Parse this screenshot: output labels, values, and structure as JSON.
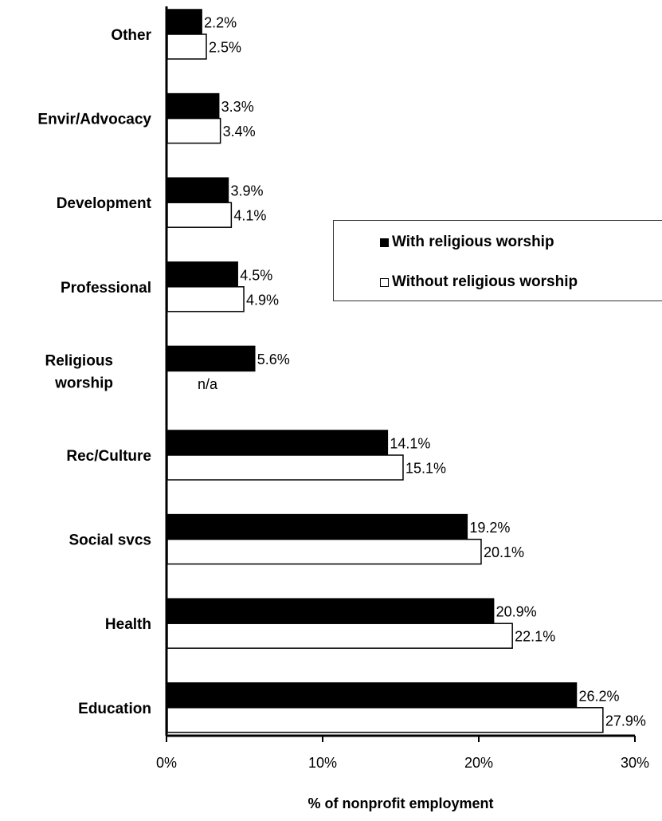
{
  "chart_data": {
    "type": "bar",
    "orientation": "horizontal",
    "categories": [
      "Other",
      "Envir/Advocacy",
      "Development",
      "Professional",
      "Religious worship",
      "Rec/Culture",
      "Social svcs",
      "Health",
      "Education"
    ],
    "category_lines": [
      [
        "Other"
      ],
      [
        "Envir/Advocacy"
      ],
      [
        "Development"
      ],
      [
        "Professional"
      ],
      [
        "Religious",
        "worship"
      ],
      [
        "Rec/Culture"
      ],
      [
        "Social svcs"
      ],
      [
        "Health"
      ],
      [
        "Education"
      ]
    ],
    "series": [
      {
        "name": "With religious worship",
        "color": "#000000",
        "values": [
          2.2,
          3.3,
          3.9,
          4.5,
          5.6,
          14.1,
          19.2,
          20.9,
          26.2
        ],
        "labels": [
          "2.2%",
          "3.3%",
          "3.9%",
          "4.5%",
          "5.6%",
          "14.1%",
          "19.2%",
          "20.9%",
          "26.2%"
        ]
      },
      {
        "name": "Without religious worship",
        "color": "#ffffff",
        "values": [
          2.5,
          3.4,
          4.1,
          4.9,
          null,
          15.1,
          20.1,
          22.1,
          27.9
        ],
        "labels": [
          "2.5%",
          "3.4%",
          "4.1%",
          "4.9%",
          "n/a",
          "15.1%",
          "20.1%",
          "22.1%",
          "27.9%"
        ]
      }
    ],
    "xlabel": "% of nonprofit employment",
    "ylabel": "",
    "xlim": [
      0,
      30
    ],
    "xticks": [
      0,
      10,
      20,
      30
    ],
    "xtick_labels": [
      "0%",
      "10%",
      "20%",
      "30%"
    ],
    "grid": false,
    "legend_position": "center-right"
  }
}
